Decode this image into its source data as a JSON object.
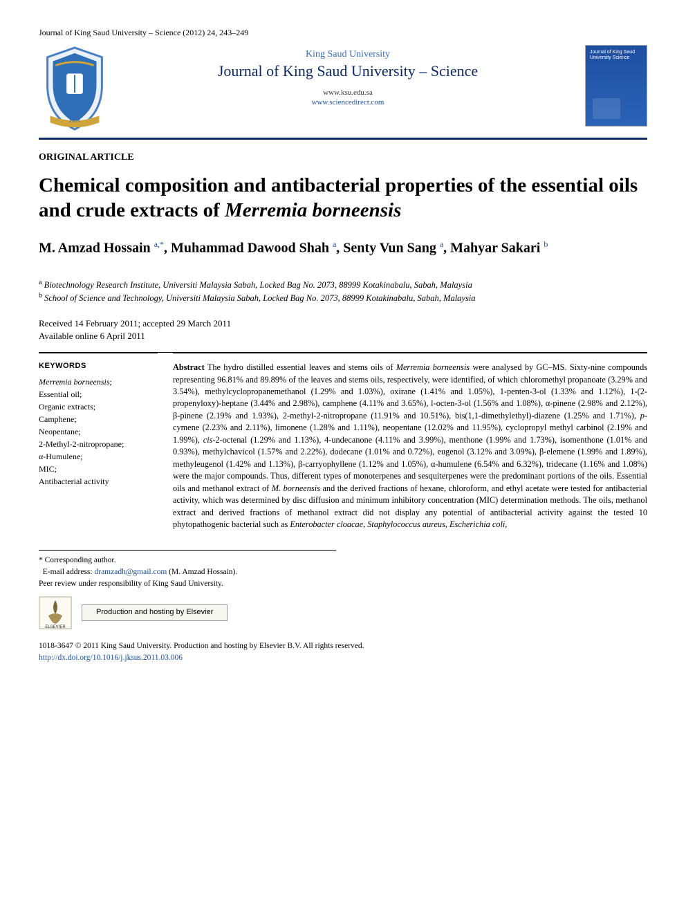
{
  "running_head": "Journal of King Saud University – Science (2012) 24, 243–249",
  "header": {
    "university": "King Saud University",
    "journal": "Journal of King Saud University – Science",
    "url1": "www.ksu.edu.sa",
    "url2": "www.sciencedirect.com",
    "cover_text": "Journal of King Saud University Science",
    "logo_colors": {
      "shield": "#2f6fb7",
      "ribbon": "#cfa43a",
      "outline": "#4b7fc2"
    }
  },
  "article_type": "ORIGINAL ARTICLE",
  "title_plain": "Chemical composition and antibacterial properties of the essential oils and crude extracts of ",
  "title_species": "Merremia borneensis",
  "authors_html": "M. Amzad Hossain <sup>a,*</sup>, Muhammad Dawood Shah <sup>a</sup>, Senty Vun Sang <sup>a</sup>, Mahyar Sakari <sup>b</sup>",
  "affiliations": {
    "a": "Biotechnology Research Institute, Universiti Malaysia Sabah, Locked Bag No. 2073, 88999 Kotakinabalu, Sabah, Malaysia",
    "b": "School of Science and Technology, Universiti Malaysia Sabah, Locked Bag No. 2073, 88999 Kotakinabalu, Sabah, Malaysia"
  },
  "dates": {
    "received_accepted": "Received 14 February 2011; accepted 29 March 2011",
    "online": "Available online 6 April 2011"
  },
  "keywords_heading": "KEYWORDS",
  "keywords": [
    "Merremia borneensis;",
    "Essential oil;",
    "Organic extracts;",
    "Camphene;",
    "Neopentane;",
    "2-Methyl-2-nitropropane;",
    "α-Humulene;",
    "MIC;",
    "Antibacterial activity"
  ],
  "abstract_label": "Abstract",
  "abstract_body": "  The hydro distilled essential leaves and stems oils of Merremia borneensis were analysed by GC–MS. Sixty-nine compounds representing 96.81% and 89.89% of the leaves and stems oils, respectively, were identified, of which chloromethyl propanoate (3.29% and 3.54%), methylcyclopropanemethanol (1.29% and 1.03%), oxirane (1.41% and 1.05%), 1-penten-3-ol (1.33% and 1.12%), 1-(2-propenyloxy)-heptane (3.44% and 2.98%), camphene (4.11% and 3.65%), l-octen-3-ol (1.56% and 1.08%), α-pinene (2.98% and 2.12%), β-pinene (2.19% and 1.93%), 2-methyl-2-nitropropane (11.91% and 10.51%), bis(1,1-dimethylethyl)-diazene (1.25% and 1.71%), p-cymene (2.23% and 2.11%), limonene (1.28% and 1.11%), neopentane (12.02% and 11.95%), cyclopropyl methyl carbinol (2.19% and 1.99%), cis-2-octenal (1.29% and 1.13%), 4-undecanone (4.11% and 3.99%), menthone (1.99% and 1.73%), isomenthone (1.01% and 0.93%), methylchavicol (1.57% and 2.22%), dodecane (1.01% and 0.72%), eugenol (3.12% and 3.09%), β-elemene (1.99% and 1.89%), methyleugenol (1.42% and 1.13%), β-carryophyllene (1.12% and 1.05%), α-humulene (6.54% and 6.32%), tridecane (1.16% and 1.08%) were the major compounds. Thus, different types of monoterpenes and sesquiterpenes were the predominant portions of the oils. Essential oils and methanol extract of M. borneensis and the derived fractions of hexane, chloroform, and ethyl acetate were tested for antibacterial activity, which was determined by disc diffusion and minimum inhibitory concentration (MIC) determination methods. The oils, methanol extract and derived fractions of methanol extract did not display any potential of antibacterial activity against the tested 10 phytopathogenic bacterial such as Enterobacter cloacae, Staphylococcus aureus, Escherichia coli,",
  "footnotes": {
    "corresponding": "Corresponding author.",
    "email_label": "E-mail address: ",
    "email": "dramzadh@gmail.com",
    "email_author": " (M. Amzad Hossain).",
    "peer_review": "Peer review under responsibility of King Saud University."
  },
  "hosting_text": "Production and hosting by Elsevier",
  "copyright": {
    "line1": "1018-3647 © 2011 King Saud University. Production and hosting by Elsevier B.V. All rights reserved.",
    "doi": "http://dx.doi.org/10.1016/j.jksus.2011.03.006"
  },
  "colors": {
    "accent": "#0b2a66",
    "link": "#1a4fa3",
    "text": "#000000",
    "bg": "#ffffff"
  },
  "typography": {
    "title_pt": 29,
    "authors_pt": 20,
    "body_pt": 12.3,
    "keywords_pt": 12,
    "footnote_pt": 11.5
  }
}
